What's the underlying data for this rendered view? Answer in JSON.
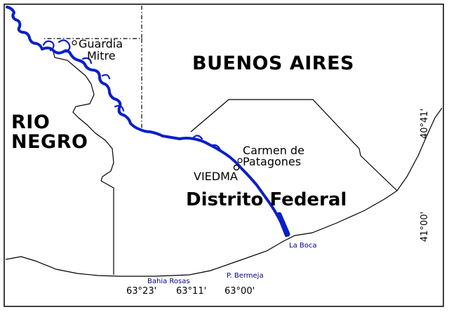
{
  "regions": {
    "buenos_aires": "BUENOS AIRES",
    "rio_negro_line1": "RIO",
    "rio_negro_line2": "NEGRO",
    "distrito_federal": "Distrito Federal"
  },
  "towns": {
    "guardia_mitre_line1": "Guardia",
    "guardia_mitre_line2": "Mitre",
    "carmen_line1": "Carmen de",
    "carmen_line2": "Patagones",
    "viedma": "VIEDMA"
  },
  "coastal_labels": {
    "la_boca": "La Boca",
    "bahia_rosas": "Bahia Rosas",
    "punta_bermeja": "P. Bermeja"
  },
  "longitude_labels": [
    "63°23'",
    "63°11'",
    "63°00'"
  ],
  "latitude_labels": [
    "40°41'",
    "41°00'"
  ],
  "colors": {
    "river": "#0a1fc8",
    "coastal_label": "#00008b",
    "border": "#000000",
    "background": "#ffffff"
  }
}
